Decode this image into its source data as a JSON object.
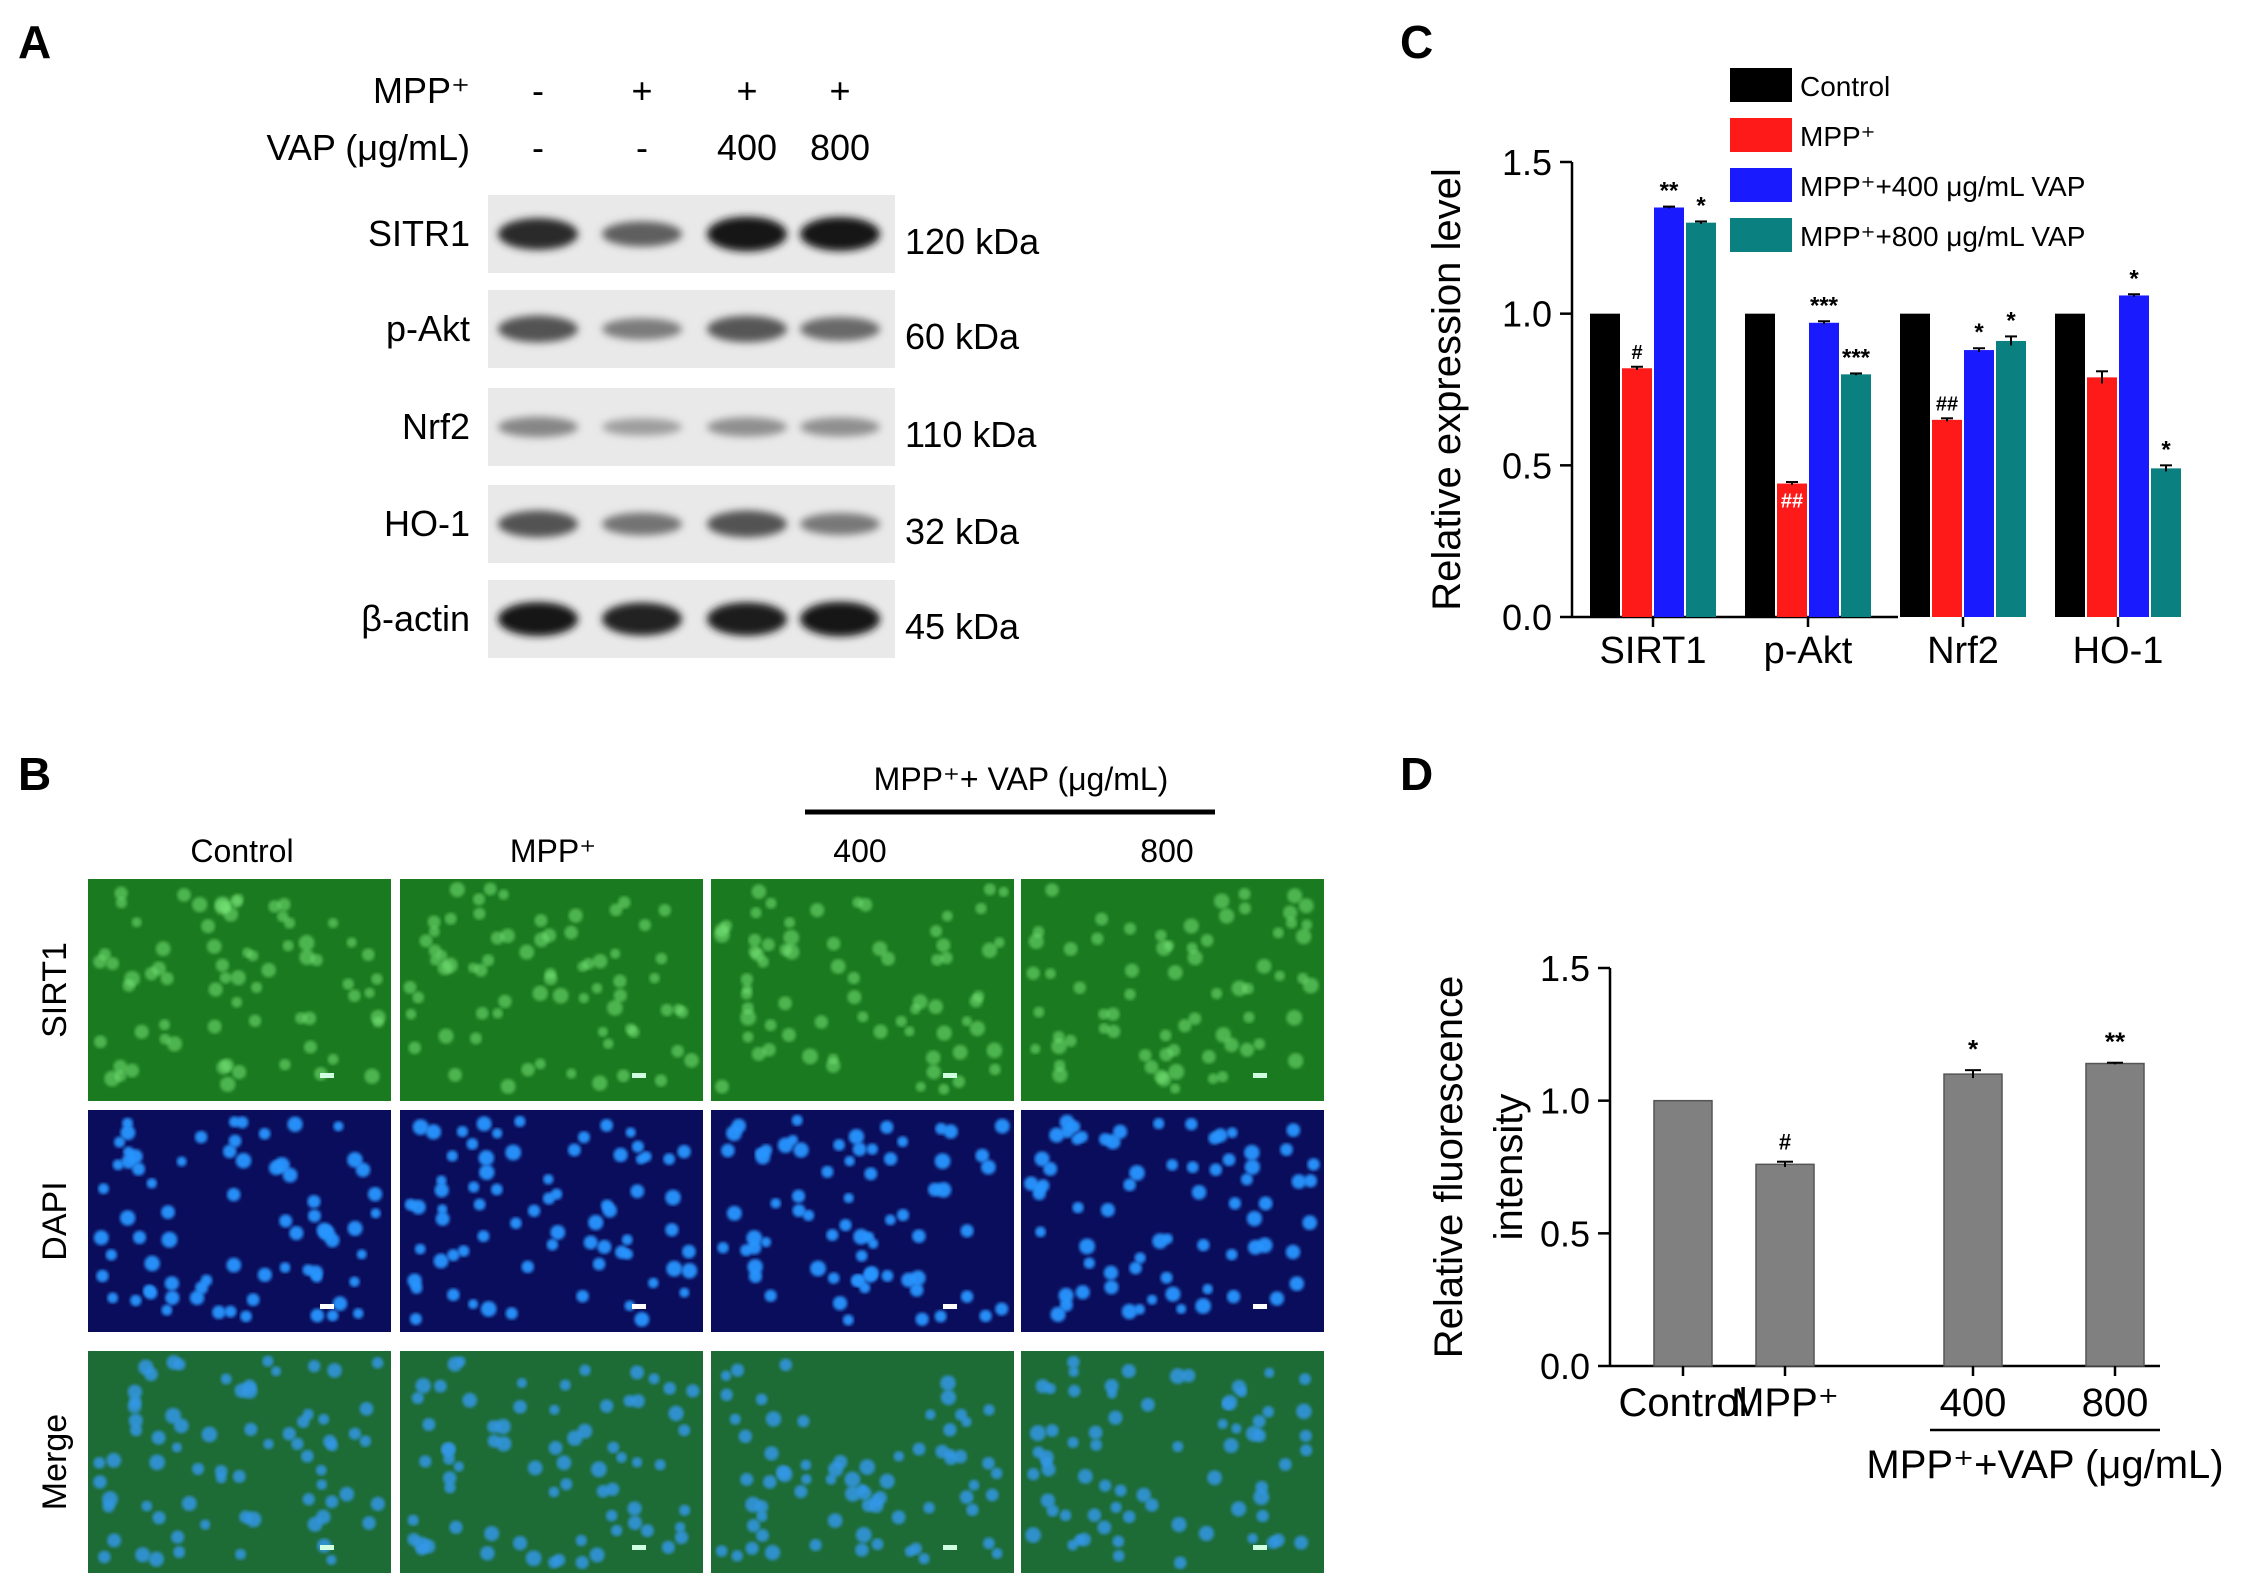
{
  "panel_letters": [
    "A",
    "B",
    "C",
    "D"
  ],
  "panel_a": {
    "row_labels": [
      "MPP⁺",
      "VAP (μg/mL)"
    ],
    "mpp_signs": [
      "-",
      "+",
      "+",
      "+"
    ],
    "vap_values": [
      "-",
      "-",
      "400",
      "800"
    ],
    "blots": [
      {
        "protein": "SITR1",
        "size": "120 kDa",
        "bands": [
          0.82,
          0.55,
          0.95,
          0.92
        ]
      },
      {
        "protein": "p-Akt",
        "size": "60 kDa",
        "bands": [
          0.62,
          0.4,
          0.6,
          0.5
        ]
      },
      {
        "protein": "Nrf2",
        "size": "110 kDa",
        "bands": [
          0.35,
          0.22,
          0.3,
          0.3
        ]
      },
      {
        "protein": "HO-1",
        "size": "32 kDa",
        "bands": [
          0.62,
          0.45,
          0.62,
          0.42
        ]
      },
      {
        "protein": "β-actin",
        "size": "45 kDa",
        "bands": [
          0.92,
          0.88,
          0.9,
          0.95
        ]
      }
    ]
  },
  "panel_b": {
    "group_header": "MPP⁺+ VAP (μg/mL)",
    "column_labels": [
      "Control",
      "MPP⁺",
      "400",
      "800"
    ],
    "row_labels": [
      "SIRT1",
      "DAPI",
      "Merge"
    ],
    "row_colors": {
      "SIRT1": "#1a7a1f",
      "DAPI": "#0a0d5c",
      "Merge": "#1d6b35"
    }
  },
  "chart_data": [
    {
      "panel": "C",
      "type": "bar",
      "ylabel": "Relative expression level",
      "ylim": [
        0.0,
        1.5
      ],
      "yticks": [
        "0.0",
        "0.5",
        "1.0",
        "1.5"
      ],
      "categories": [
        "SIRT1",
        "p-Akt",
        "Nrf2",
        "HO-1"
      ],
      "legend_position": "top-right",
      "series": [
        {
          "name": "Control",
          "color": "#000000",
          "values": [
            1.0,
            1.0,
            1.0,
            1.0
          ],
          "errors": [
            0,
            0,
            0,
            0
          ],
          "marks": [
            "",
            "",
            "",
            ""
          ]
        },
        {
          "name": "MPP⁺",
          "color": "#ff1a1a",
          "values": [
            0.82,
            0.44,
            0.65,
            0.79
          ],
          "errors": [
            0.005,
            0.005,
            0.005,
            0.02
          ],
          "marks": [
            "#",
            "##",
            "##",
            ""
          ]
        },
        {
          "name": "MPP⁺+400 μg/mL VAP",
          "color": "#1a1aff",
          "values": [
            1.35,
            0.97,
            0.88,
            1.06
          ],
          "errors": [
            0.003,
            0.005,
            0.006,
            0.004
          ],
          "marks": [
            "**",
            "***",
            "*",
            "*"
          ]
        },
        {
          "name": "MPP⁺+800 μg/mL VAP",
          "color": "#0a8080",
          "values": [
            1.3,
            0.8,
            0.91,
            0.49
          ],
          "errors": [
            0.004,
            0.003,
            0.015,
            0.01
          ],
          "marks": [
            "*",
            "***",
            "*",
            "*"
          ]
        }
      ]
    },
    {
      "panel": "D",
      "type": "bar",
      "ylabel": "Relative fluorescence intensity",
      "ylim": [
        0.0,
        1.5
      ],
      "yticks": [
        "0.0",
        "0.5",
        "1.0",
        "1.5"
      ],
      "categories": [
        "Control",
        "MPP⁺",
        "400",
        "800"
      ],
      "group_label": "MPP⁺+VAP (μg/mL)",
      "color": "#808080",
      "values": [
        1.0,
        0.76,
        1.1,
        1.14
      ],
      "errors": [
        0,
        0.01,
        0.015,
        0.003
      ],
      "marks": [
        "",
        "#",
        "*",
        "**"
      ]
    }
  ]
}
